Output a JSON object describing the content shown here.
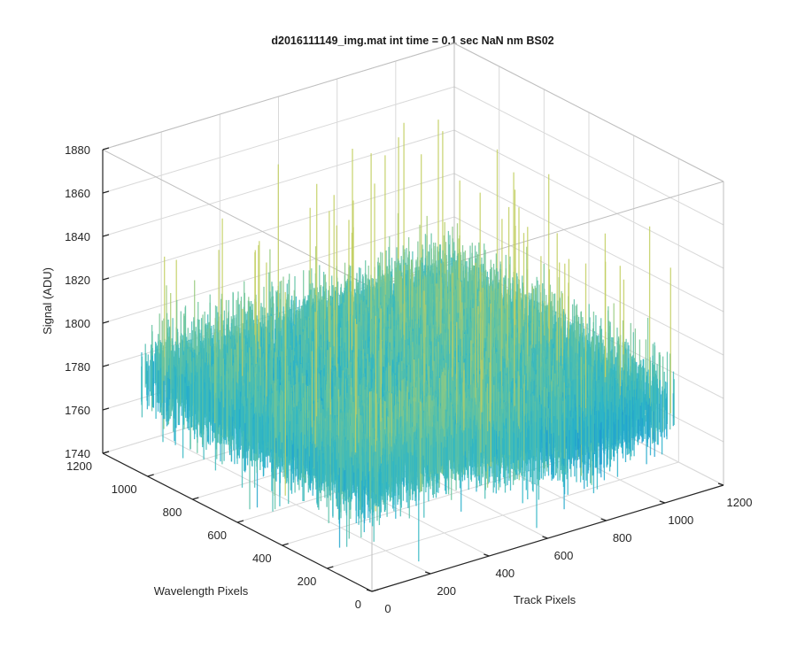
{
  "chart_data": {
    "type": "surface",
    "title": "d2016111149_img.mat int time = 0.1 sec  NaN nm BS02",
    "xlabel": "Track Pixels",
    "ylabel": "Wavelength Pixels",
    "zlabel": "Signal (ADU)",
    "xlim": [
      0,
      1200
    ],
    "ylim": [
      0,
      1200
    ],
    "zlim": [
      1740,
      1880
    ],
    "x_ticks": [
      "0",
      "200",
      "400",
      "600",
      "800",
      "1000",
      "1200"
    ],
    "y_ticks": [
      "0",
      "200",
      "400",
      "600",
      "800",
      "1000",
      "1200"
    ],
    "z_ticks": [
      "1740",
      "1760",
      "1780",
      "1800",
      "1820",
      "1840",
      "1860",
      "1880"
    ],
    "surface": {
      "x_extent": [
        0,
        1024
      ],
      "y_extent": [
        0,
        1024
      ],
      "mean_signal": 1785,
      "typical_range": [
        1760,
        1830
      ],
      "peak_signal": 1870,
      "min_signal": 1745,
      "colormap": [
        "#0a50d6",
        "#1890d4",
        "#2bb5c8",
        "#6cc59a",
        "#c2cf60"
      ]
    },
    "grid": true
  }
}
